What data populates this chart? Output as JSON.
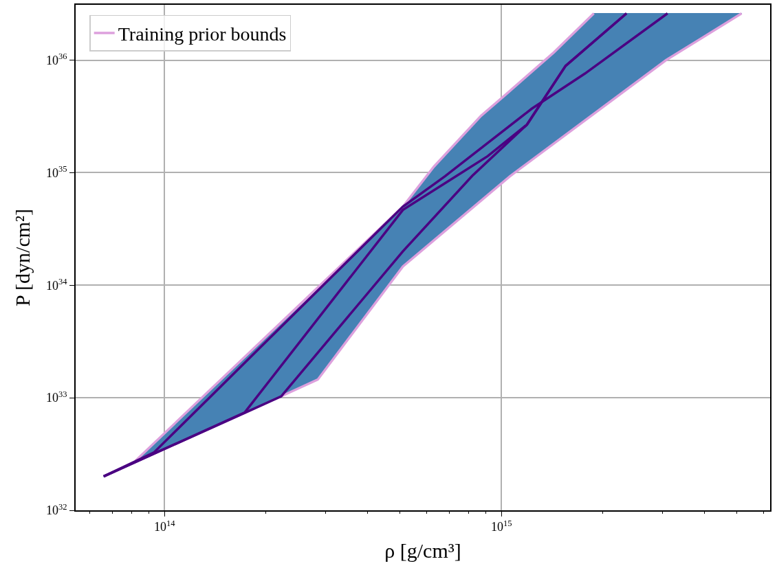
{
  "chart_data": {
    "type": "line",
    "xlabel": "ρ [g/cm³]",
    "ylabel": "P [dyn/cm²]",
    "log": "xy",
    "grid": true,
    "legend": "top left",
    "marker": "none",
    "line_style": "solid",
    "xlim": [
      54500000000000.0,
      6270000000000000.0
    ],
    "ylim": [
      1e+32,
      3.1e+36
    ],
    "xticks": [
      {
        "value": 60000000000000.0,
        "label": null
      },
      {
        "value": 70000000000000.0,
        "label": null
      },
      {
        "value": 80000000000000.0,
        "label": null
      },
      {
        "value": 90000000000000.0,
        "label": null
      },
      {
        "value": 100000000000000.0,
        "label": "10$^{14}$"
      },
      {
        "value": 200000000000000.0,
        "label": null
      },
      {
        "value": 300000000000000.0,
        "label": null
      },
      {
        "value": 400000000000000.0,
        "label": null
      },
      {
        "value": 500000000000000.0,
        "label": null
      },
      {
        "value": 600000000000000.0,
        "label": null
      },
      {
        "value": 700000000000000.0,
        "label": null
      },
      {
        "value": 800000000000000.0,
        "label": null
      },
      {
        "value": 900000000000000.0,
        "label": null
      },
      {
        "value": 1000000000000000.0,
        "label": "10$^{15}$"
      },
      {
        "value": 2000000000000000.0,
        "label": null
      },
      {
        "value": 3000000000000000.0,
        "label": null
      },
      {
        "value": 4000000000000000.0,
        "label": null
      },
      {
        "value": 5000000000000000.0,
        "label": null
      },
      {
        "value": 6000000000000000.0,
        "label": null
      }
    ],
    "yticks": [
      {
        "value": 1e+32,
        "label": "10$^{32}$"
      },
      {
        "value": 1e+33,
        "label": "10$^{33}$"
      },
      {
        "value": 1e+34,
        "label": "10$^{34}$"
      },
      {
        "value": 1e+35,
        "label": "10$^{35}$"
      },
      {
        "value": 1e+36,
        "label": "10$^{36}$"
      }
    ],
    "series": [
      {
        "type": "area",
        "color": "#4682b4",
        "x": [
          66000000000000.0,
          82000000000000.0,
          510000000000000.0,
          630000000000000.0,
          870000000000000.0,
          1030000000000000.0,
          1430000000000000.0,
          1880000000000000.0,
          5160000000000000.0,
          3080000000000000.0,
          1060000000000000.0,
          620000000000000.0,
          510000000000000.0,
          285000000000000.0,
          222000000000000.0,
          174000000000000.0,
          66000000000000.0
        ],
        "values": [
          2e+32,
          2.75e+32,
          5e+34,
          1.13e+35,
          3.2e+35,
          4.95e+35,
          1.17e+36,
          2.6e+36,
          2.6e+36,
          1e+36,
          9.3e+34,
          2.4e+34,
          1.47e+34,
          1.45e+33,
          1.03e+33,
          7.4e+32,
          2e+32
        ]
      },
      {
        "name": "Training prior bounds",
        "color": "#dda0dd",
        "x": [
          82000000000000.0,
          510000000000000.0,
          630000000000000.0,
          870000000000000.0,
          1030000000000000.0,
          1430000000000000.0,
          1880000000000000.0
        ],
        "values": [
          2.75e+32,
          5e+34,
          1.13e+35,
          3.2e+35,
          4.95e+35,
          1.17e+36,
          2.6e+36
        ]
      },
      {
        "color": "#dda0dd",
        "x": [
          222000000000000.0,
          285000000000000.0,
          510000000000000.0,
          620000000000000.0,
          1060000000000000.0,
          3080000000000000.0,
          5160000000000000.0
        ],
        "values": [
          1.03e+33,
          1.45e+33,
          1.47e+34,
          2.4e+34,
          9.3e+34,
          1e+36,
          2.6e+36
        ]
      },
      {
        "color": "#4b0082",
        "x": [
          66000000000000.0,
          93000000000000.0,
          510000000000000.0,
          680000000000000.0,
          1230000000000000.0,
          1770000000000000.0,
          3110000000000000.0
        ],
        "values": [
          2e+32,
          3.26e+32,
          5e+34,
          9.3e+34,
          3.7e+35,
          7.6e+35,
          2.6e+36
        ]
      },
      {
        "color": "#4b0082",
        "x": [
          66000000000000.0,
          173000000000000.0,
          510000000000000.0,
          910000000000000.0,
          1190000000000000.0,
          1550000000000000.0,
          2350000000000000.0
        ],
        "values": [
          2e+32,
          7.4e+32,
          4.67e+34,
          1.4e+35,
          2.67e+35,
          8.9e+35,
          2.6e+36
        ]
      },
      {
        "color": "#4b0082",
        "x": [
          66000000000000.0,
          174000000000000.0,
          222000000000000.0,
          510000000000000.0,
          820000000000000.0,
          1190000000000000.0,
          1550000000000000.0,
          2350000000000000.0
        ],
        "values": [
          2e+32,
          7.4e+32,
          1.03e+33,
          2e+34,
          9.4e+34,
          2.67e+35,
          8.9e+35,
          2.6e+36
        ]
      }
    ]
  }
}
